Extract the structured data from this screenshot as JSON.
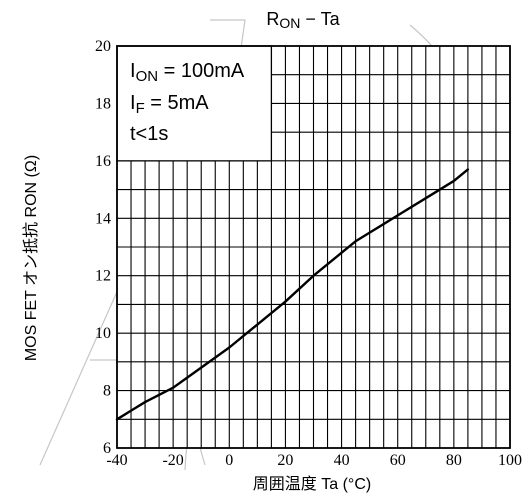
{
  "chart_data": {
    "type": "line",
    "title_parts": [
      "R",
      "ON",
      " − Ta"
    ],
    "xlabel": "周囲温度 Ta (°C)",
    "ylabel": "MOS FET オン抵抗 RON (Ω)",
    "xlim": [
      -40,
      100
    ],
    "ylim": [
      6,
      20
    ],
    "xticks": [
      -40,
      -20,
      0,
      20,
      40,
      60,
      80,
      100
    ],
    "yticks": [
      6,
      8,
      10,
      12,
      14,
      16,
      18,
      20
    ],
    "grid": true,
    "series": [
      {
        "x": [
          -40,
          -30,
          -20,
          -10,
          0,
          10,
          20,
          30,
          40,
          45,
          50,
          60,
          70,
          80,
          85
        ],
        "y": [
          7.0,
          7.6,
          8.1,
          8.8,
          9.5,
          10.3,
          11.1,
          12.0,
          12.8,
          13.2,
          13.5,
          14.1,
          14.7,
          15.3,
          15.7
        ]
      }
    ],
    "annotation_box": {
      "lines": [
        [
          "I",
          "ON",
          " = 100mA"
        ],
        [
          "I",
          "F",
          " = 5mA"
        ],
        [
          "t<1s",
          "",
          ""
        ]
      ]
    }
  }
}
